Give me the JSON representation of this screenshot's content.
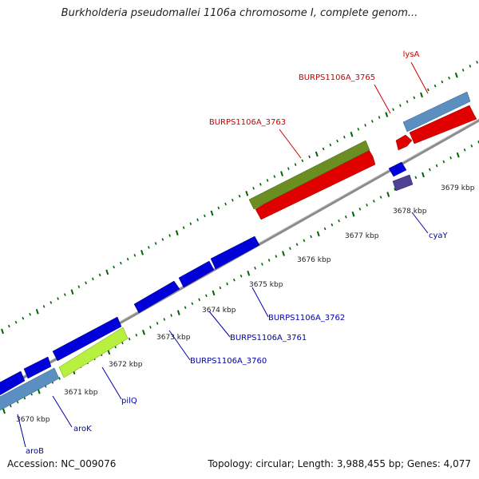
{
  "title": "Burkholderia pseudomallei 1106a chromosome I, complete genom...",
  "footer": {
    "accession": "Accession: NC_009076",
    "summary": "Topology: circular; Length: 3,988,455 bp; Genes: 4,077"
  },
  "colors": {
    "forward_gene": "#e00000",
    "reverse_gene": "#0000d8",
    "operon_blue": "#5b8fbf",
    "olive": "#6b8e23",
    "lime": "#b8f040",
    "purple": "#4d4196",
    "tick_green": "#006400",
    "backbone": "#9a9a9a",
    "forward_label": "#cc0000",
    "reverse_label": "#0000aa"
  },
  "ticks": [
    "3670 kbp",
    "3671 kbp",
    "3672 kbp",
    "3673 kbp",
    "3674 kbp",
    "3675 kbp",
    "3676 kbp",
    "3677 kbp",
    "3678 kbp",
    "3679 kbp"
  ],
  "genes": [
    {
      "id": "aroB",
      "label": "aroB",
      "kind": "reverse"
    },
    {
      "id": "aroK",
      "label": "aroK",
      "kind": "reverse"
    },
    {
      "id": "pilQ",
      "label": "pilQ",
      "kind": "reverse"
    },
    {
      "id": "BURPS1106A_3760",
      "label": "BURPS1106A_3760",
      "kind": "reverse"
    },
    {
      "id": "BURPS1106A_3761",
      "label": "BURPS1106A_3761",
      "kind": "reverse"
    },
    {
      "id": "BURPS1106A_3762",
      "label": "BURPS1106A_3762",
      "kind": "reverse"
    },
    {
      "id": "cyaY",
      "label": "cyaY",
      "kind": "reverse"
    },
    {
      "id": "BURPS1106A_3763",
      "label": "BURPS1106A_3763",
      "kind": "forward"
    },
    {
      "id": "BURPS1106A_3765",
      "label": "BURPS1106A_3765",
      "kind": "forward"
    },
    {
      "id": "lysA",
      "label": "lysA",
      "kind": "forward"
    }
  ]
}
